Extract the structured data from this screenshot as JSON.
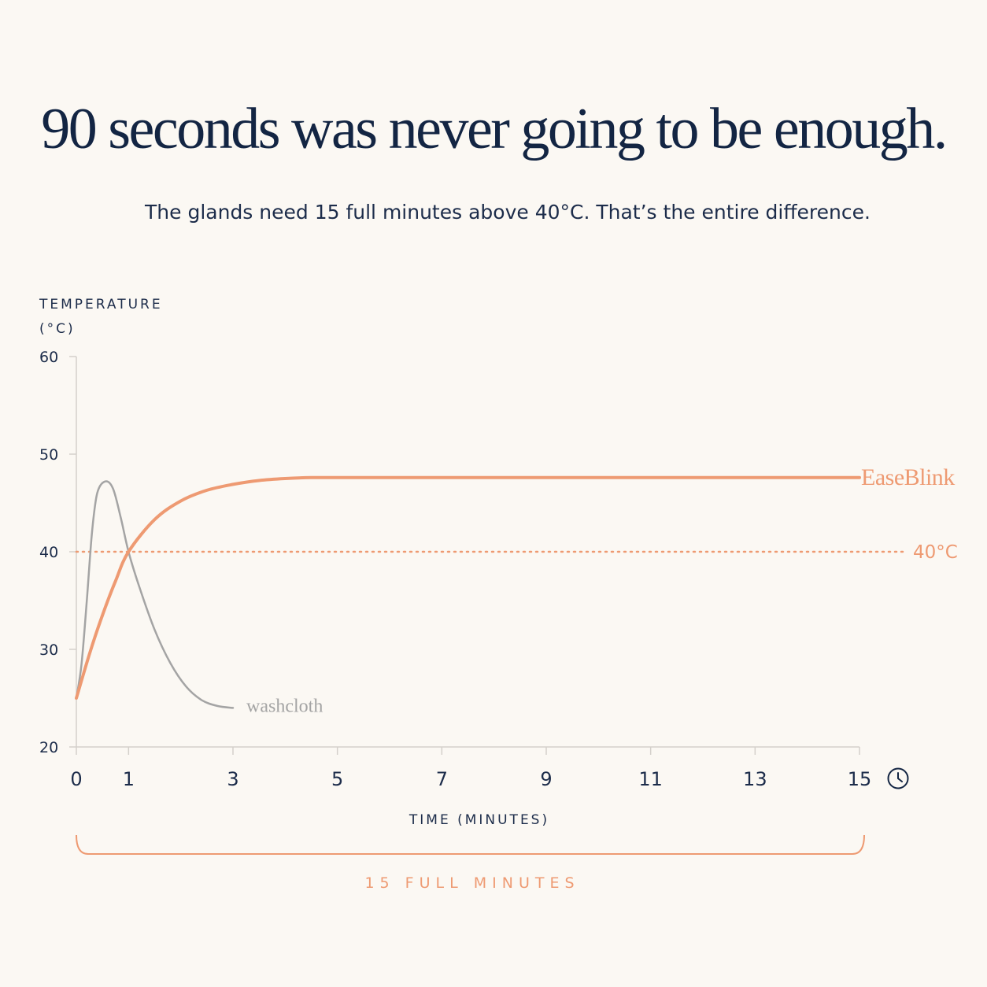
{
  "headline": "90 seconds was never going to be enough.",
  "subtitle": "The glands need 15 full minutes above 40°C. That’s the entire difference.",
  "colors": {
    "accent": "#ee9a72",
    "washcloth": "#a4a4a4",
    "navy": "#132543",
    "axis": "#d4d0cb",
    "background": "#fbf8f3"
  },
  "clock_icon": "clock-icon",
  "chart_data": {
    "type": "line",
    "ylabel_line1": "TEMPERATURE",
    "ylabel_line2": "(°C)",
    "xlabel": "TIME (MINUTES)",
    "ylim": [
      20,
      60
    ],
    "yticks": [
      "60",
      "50",
      "40",
      "30",
      "20"
    ],
    "xlim": [
      0,
      15
    ],
    "xticks": [
      "0",
      "1",
      "3",
      "5",
      "7",
      "9",
      "11",
      "13",
      "15"
    ],
    "grid": false,
    "series": [
      {
        "name": "EaseBlink",
        "x": [
          0,
          0.25,
          0.5,
          0.75,
          1,
          1.5,
          2,
          2.5,
          3,
          3.5,
          4,
          4.5,
          5,
          6,
          8,
          10,
          12,
          14,
          15
        ],
        "y": [
          25,
          29.5,
          33.5,
          37,
          40,
          43.3,
          45.2,
          46.3,
          46.9,
          47.3,
          47.5,
          47.6,
          47.6,
          47.6,
          47.6,
          47.6,
          47.6,
          47.6,
          47.6
        ]
      },
      {
        "name": "washcloth",
        "x": [
          0,
          0.1,
          0.2,
          0.3,
          0.4,
          0.55,
          0.7,
          0.85,
          1,
          1.2,
          1.5,
          1.8,
          2.1,
          2.4,
          2.7,
          3
        ],
        "y": [
          25,
          28.5,
          35,
          42,
          46,
          47.2,
          46.5,
          43.5,
          40,
          36.5,
          32,
          28.6,
          26.2,
          24.8,
          24.2,
          24
        ]
      }
    ],
    "threshold": {
      "value": 40,
      "label": "40°C"
    },
    "span_annotation": {
      "from": 0,
      "to": 15,
      "label": "15 FULL MINUTES"
    }
  }
}
